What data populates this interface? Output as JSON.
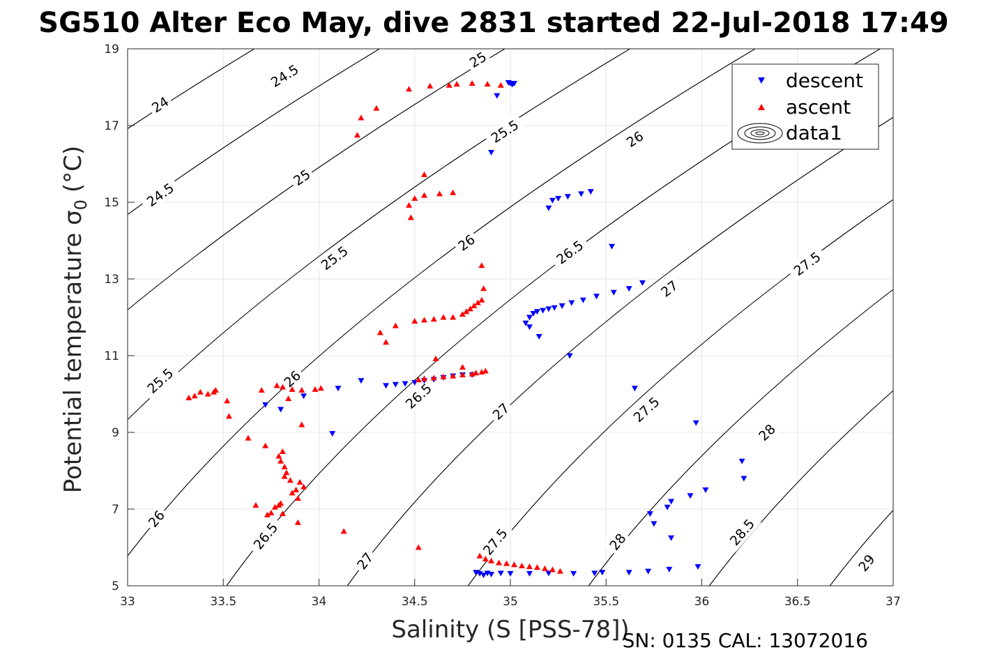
{
  "chart_data": {
    "type": "scatter",
    "title": "SG510 Alter Eco May, dive 2831 started 22-Jul-2018 17:49",
    "xlabel": "Salinity (S [PSS-78])",
    "ylabel": "Potential temperature σ",
    "ylabel_sub": "0",
    "ylabel_unit": "(°C)",
    "caption": "SN: 0135  CAL: 13072016",
    "xlim": [
      33,
      37
    ],
    "ylim": [
      5,
      19
    ],
    "xticks": [
      "33",
      "33.5",
      "34",
      "34.5",
      "35",
      "35.5",
      "36",
      "36.5",
      "37"
    ],
    "yticks": [
      "5",
      "7",
      "9",
      "11",
      "13",
      "15",
      "17",
      "19"
    ],
    "grid": true,
    "legend": {
      "placement": "top-right",
      "entries": [
        "descent",
        "ascent",
        "data1"
      ]
    },
    "colors": {
      "descent": "#0000ff",
      "ascent": "#ff0000",
      "contour": "#000000"
    },
    "contours": {
      "levels": [
        "24",
        "24.5",
        "25",
        "25.5",
        "26",
        "26.5",
        "27",
        "27.5",
        "28",
        "28.5",
        "29"
      ],
      "labels": [
        {
          "text": "24",
          "x": 33.17,
          "y": 17.55
        },
        {
          "text": "24.5",
          "x": 33.82,
          "y": 18.3
        },
        {
          "text": "25",
          "x": 34.83,
          "y": 18.72
        },
        {
          "text": "24.5",
          "x": 33.17,
          "y": 15.2
        },
        {
          "text": "25",
          "x": 33.91,
          "y": 15.65
        },
        {
          "text": "25.5",
          "x": 34.97,
          "y": 16.85
        },
        {
          "text": "25.5",
          "x": 33.17,
          "y": 10.35
        },
        {
          "text": "25.5",
          "x": 34.08,
          "y": 13.55
        },
        {
          "text": "26",
          "x": 35.65,
          "y": 16.65
        },
        {
          "text": "26",
          "x": 34.77,
          "y": 13.95
        },
        {
          "text": "26",
          "x": 33.86,
          "y": 10.4
        },
        {
          "text": "26",
          "x": 33.15,
          "y": 6.75
        },
        {
          "text": "26.5",
          "x": 35.31,
          "y": 13.7
        },
        {
          "text": "26.5",
          "x": 34.52,
          "y": 9.95
        },
        {
          "text": "26.5",
          "x": 33.72,
          "y": 6.3
        },
        {
          "text": "27",
          "x": 36.42,
          "y": 16.6
        },
        {
          "text": "27",
          "x": 35.83,
          "y": 12.75
        },
        {
          "text": "27",
          "x": 34.95,
          "y": 9.55
        },
        {
          "text": "27",
          "x": 34.24,
          "y": 5.65
        },
        {
          "text": "27.5",
          "x": 36.55,
          "y": 13.4
        },
        {
          "text": "27.5",
          "x": 35.71,
          "y": 9.6
        },
        {
          "text": "27.5",
          "x": 34.92,
          "y": 6.15
        },
        {
          "text": "28",
          "x": 36.34,
          "y": 9.0
        },
        {
          "text": "28",
          "x": 35.56,
          "y": 6.15
        },
        {
          "text": "28.5",
          "x": 36.21,
          "y": 6.4
        },
        {
          "text": "29",
          "x": 36.86,
          "y": 5.6
        }
      ]
    },
    "series": [
      {
        "name": "descent",
        "marker": "triangle-down",
        "points": [
          [
            34.99,
            18.12
          ],
          [
            35.0,
            18.1
          ],
          [
            35.02,
            18.1
          ],
          [
            35.01,
            18.07
          ],
          [
            34.93,
            17.78
          ],
          [
            34.9,
            16.3
          ],
          [
            35.2,
            14.85
          ],
          [
            35.22,
            15.05
          ],
          [
            35.25,
            15.1
          ],
          [
            35.3,
            15.15
          ],
          [
            35.37,
            15.22
          ],
          [
            35.42,
            15.28
          ],
          [
            35.53,
            13.85
          ],
          [
            35.08,
            11.85
          ],
          [
            35.1,
            12.0
          ],
          [
            35.12,
            12.1
          ],
          [
            35.14,
            12.15
          ],
          [
            35.17,
            12.18
          ],
          [
            35.2,
            12.22
          ],
          [
            35.23,
            12.25
          ],
          [
            35.27,
            12.3
          ],
          [
            35.32,
            12.38
          ],
          [
            35.38,
            12.45
          ],
          [
            35.45,
            12.55
          ],
          [
            35.54,
            12.65
          ],
          [
            35.62,
            12.75
          ],
          [
            35.69,
            12.9
          ],
          [
            35.1,
            11.75
          ],
          [
            35.15,
            11.5
          ],
          [
            35.31,
            11.0
          ],
          [
            34.8,
            10.5
          ],
          [
            34.75,
            10.5
          ],
          [
            34.7,
            10.47
          ],
          [
            34.65,
            10.43
          ],
          [
            34.6,
            10.38
          ],
          [
            34.55,
            10.35
          ],
          [
            34.5,
            10.3
          ],
          [
            34.45,
            10.27
          ],
          [
            34.4,
            10.25
          ],
          [
            34.35,
            10.22
          ],
          [
            34.22,
            10.35
          ],
          [
            34.1,
            10.15
          ],
          [
            33.92,
            9.95
          ],
          [
            33.72,
            9.72
          ],
          [
            33.8,
            9.6
          ],
          [
            34.07,
            8.97
          ],
          [
            35.65,
            10.15
          ],
          [
            35.97,
            9.25
          ],
          [
            36.21,
            8.25
          ],
          [
            36.22,
            7.8
          ],
          [
            36.02,
            7.5
          ],
          [
            35.94,
            7.35
          ],
          [
            35.84,
            7.2
          ],
          [
            35.82,
            7.05
          ],
          [
            35.73,
            6.88
          ],
          [
            35.75,
            6.62
          ],
          [
            35.84,
            6.25
          ],
          [
            35.98,
            5.5
          ],
          [
            35.83,
            5.43
          ],
          [
            35.72,
            5.38
          ],
          [
            35.62,
            5.35
          ],
          [
            35.48,
            5.35
          ],
          [
            35.44,
            5.33
          ],
          [
            35.33,
            5.32
          ],
          [
            35.2,
            5.33
          ],
          [
            35.1,
            5.32
          ],
          [
            35.0,
            5.32
          ],
          [
            34.95,
            5.33
          ],
          [
            34.9,
            5.3
          ],
          [
            34.88,
            5.33
          ],
          [
            34.86,
            5.28
          ],
          [
            34.84,
            5.32
          ],
          [
            34.82,
            5.35
          ]
        ]
      },
      {
        "name": "ascent",
        "marker": "triangle-up",
        "points": [
          [
            34.95,
            18.05
          ],
          [
            34.88,
            18.08
          ],
          [
            34.8,
            18.1
          ],
          [
            34.72,
            18.08
          ],
          [
            34.68,
            18.05
          ],
          [
            34.58,
            18.03
          ],
          [
            34.47,
            17.95
          ],
          [
            34.3,
            17.45
          ],
          [
            34.22,
            17.2
          ],
          [
            34.2,
            16.75
          ],
          [
            34.55,
            15.72
          ],
          [
            34.7,
            15.25
          ],
          [
            34.63,
            15.22
          ],
          [
            34.55,
            15.18
          ],
          [
            34.5,
            15.1
          ],
          [
            34.47,
            14.92
          ],
          [
            34.48,
            14.6
          ],
          [
            34.85,
            13.35
          ],
          [
            34.86,
            12.75
          ],
          [
            34.85,
            12.45
          ],
          [
            34.83,
            12.38
          ],
          [
            34.81,
            12.3
          ],
          [
            34.79,
            12.22
          ],
          [
            34.77,
            12.15
          ],
          [
            34.75,
            12.08
          ],
          [
            34.7,
            12.0
          ],
          [
            34.65,
            12.0
          ],
          [
            34.6,
            11.95
          ],
          [
            34.55,
            11.93
          ],
          [
            34.5,
            11.9
          ],
          [
            34.4,
            11.78
          ],
          [
            34.32,
            11.6
          ],
          [
            34.35,
            11.35
          ],
          [
            34.61,
            10.92
          ],
          [
            34.75,
            10.7
          ],
          [
            34.87,
            10.6
          ],
          [
            34.85,
            10.57
          ],
          [
            34.82,
            10.55
          ],
          [
            34.8,
            10.52
          ],
          [
            34.75,
            10.5
          ],
          [
            34.7,
            10.47
          ],
          [
            34.65,
            10.45
          ],
          [
            34.6,
            10.42
          ],
          [
            34.55,
            10.4
          ],
          [
            34.52,
            10.37
          ],
          [
            34.01,
            10.15
          ],
          [
            33.98,
            10.12
          ],
          [
            33.91,
            10.1
          ],
          [
            33.86,
            10.12
          ],
          [
            33.81,
            10.18
          ],
          [
            33.78,
            10.22
          ],
          [
            33.7,
            10.1
          ],
          [
            33.46,
            10.1
          ],
          [
            33.45,
            10.05
          ],
          [
            33.42,
            10.0
          ],
          [
            33.38,
            10.05
          ],
          [
            33.35,
            9.95
          ],
          [
            33.32,
            9.9
          ],
          [
            33.52,
            9.82
          ],
          [
            33.84,
            9.88
          ],
          [
            33.53,
            9.42
          ],
          [
            33.91,
            9.2
          ],
          [
            33.63,
            8.85
          ],
          [
            33.72,
            8.65
          ],
          [
            33.81,
            8.5
          ],
          [
            33.79,
            8.38
          ],
          [
            33.8,
            8.25
          ],
          [
            33.82,
            8.1
          ],
          [
            33.83,
            7.95
          ],
          [
            33.82,
            7.85
          ],
          [
            33.85,
            7.75
          ],
          [
            33.9,
            7.7
          ],
          [
            33.92,
            7.58
          ],
          [
            33.88,
            7.5
          ],
          [
            33.86,
            7.42
          ],
          [
            33.89,
            7.28
          ],
          [
            33.8,
            7.15
          ],
          [
            33.79,
            7.1
          ],
          [
            33.77,
            7.05
          ],
          [
            33.67,
            7.1
          ],
          [
            33.75,
            6.9
          ],
          [
            33.73,
            6.85
          ],
          [
            33.81,
            6.88
          ],
          [
            33.89,
            6.65
          ],
          [
            34.13,
            6.42
          ],
          [
            34.52,
            6.0
          ],
          [
            34.84,
            5.78
          ],
          [
            34.87,
            5.7
          ],
          [
            34.9,
            5.65
          ],
          [
            34.94,
            5.6
          ],
          [
            34.98,
            5.58
          ],
          [
            35.02,
            5.55
          ],
          [
            35.06,
            5.52
          ],
          [
            35.1,
            5.5
          ],
          [
            35.14,
            5.48
          ],
          [
            35.18,
            5.45
          ],
          [
            35.22,
            5.42
          ],
          [
            35.26,
            5.38
          ]
        ]
      }
    ]
  }
}
